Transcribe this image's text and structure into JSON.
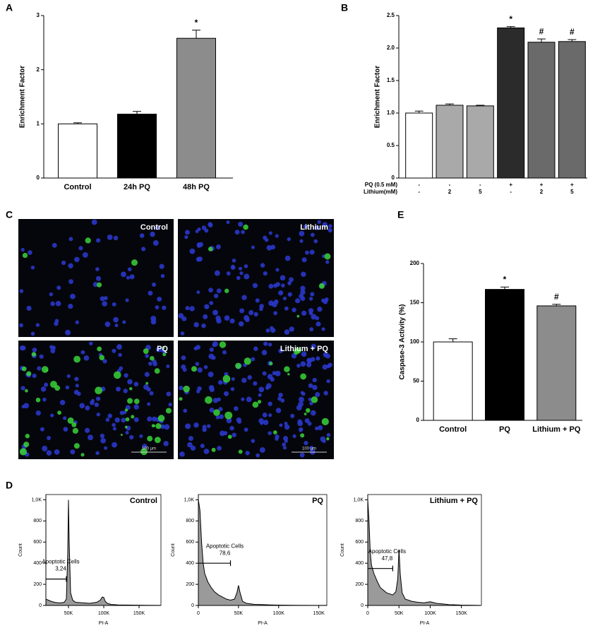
{
  "chart_data": [
    {
      "type": "bar",
      "panel": "A",
      "ylabel": "Enrichment Factor",
      "categories": [
        "Control",
        "24h PQ",
        "48h PQ"
      ],
      "values": [
        1.0,
        1.18,
        2.58
      ],
      "errors": [
        0.02,
        0.05,
        0.15
      ],
      "colors": [
        "#ffffff",
        "#000000",
        "#8c8c8c"
      ],
      "markers": [
        null,
        null,
        "*"
      ],
      "ylim": [
        0,
        3
      ],
      "yticks": [
        0,
        1,
        2,
        3
      ]
    },
    {
      "type": "bar",
      "panel": "B",
      "ylabel": "Enrichment Factor",
      "values": [
        1.0,
        1.12,
        1.11,
        2.31,
        2.09,
        2.1
      ],
      "errors": [
        0.03,
        0.02,
        0.01,
        0.02,
        0.05,
        0.03
      ],
      "colors": [
        "#ffffff",
        "#a9a9a9",
        "#a9a9a9",
        "#2b2b2b",
        "#6a6a6a",
        "#6a6a6a"
      ],
      "markers": [
        null,
        null,
        null,
        "*",
        "#",
        "#"
      ],
      "conditions": [
        {
          "name": "PQ (0.5 mM)",
          "values": [
            "-",
            "-",
            "-",
            "+",
            "+",
            "+"
          ]
        },
        {
          "name": "Lithium(mM)",
          "values": [
            "-",
            "2",
            "5",
            "-",
            "2",
            "5"
          ]
        }
      ],
      "ylim": [
        0,
        2.5
      ],
      "yticks": [
        0,
        0.5,
        {
          "value": 1,
          "label": "1.0"
        },
        1.5,
        {
          "value": 2,
          "label": "2.0"
        },
        2.5
      ]
    },
    {
      "type": "bar",
      "panel": "E",
      "ylabel": "Caspase-3 Activity (%)",
      "categories": [
        "Control",
        "PQ",
        "Lithium + PQ"
      ],
      "values": [
        100,
        167,
        146
      ],
      "errors": [
        4,
        3,
        2
      ],
      "colors": [
        "#ffffff",
        "#000000",
        "#8c8c8c"
      ],
      "markers": [
        null,
        "*",
        "#"
      ],
      "ylim": [
        0,
        200
      ],
      "yticks": [
        0,
        50,
        100,
        150,
        200
      ]
    },
    {
      "type": "area",
      "panel": "D",
      "title": "Control",
      "xlabel": "PI-A",
      "ylabel": "Count",
      "x": [
        18000,
        25000,
        30000,
        35000,
        40000,
        44000,
        47000,
        49000,
        50000,
        51000,
        53000,
        56000,
        60000,
        70000,
        80000,
        90000,
        95000,
        98000,
        100000,
        102000,
        105000,
        110000,
        120000,
        140000,
        160000,
        180000
      ],
      "values": [
        60,
        40,
        30,
        25,
        25,
        30,
        60,
        500,
        1000,
        600,
        120,
        50,
        30,
        25,
        20,
        30,
        50,
        80,
        75,
        40,
        20,
        10,
        5,
        3,
        2,
        1
      ],
      "gate": {
        "label": "Apoptotic Cells",
        "value": 3.24,
        "value_label": "3,24",
        "x": [
          18000,
          47000
        ],
        "y": 250
      },
      "xlim": [
        18000,
        181000
      ],
      "xticks": [
        {
          "value": 50000,
          "label": "50K"
        },
        {
          "value": 100000,
          "label": "100K"
        },
        {
          "value": 150000,
          "label": "150K"
        }
      ],
      "ylim": [
        0,
        1050
      ],
      "yticks": [
        0,
        200,
        400,
        600,
        800,
        {
          "value": 1000,
          "label": "1,0K"
        }
      ]
    },
    {
      "type": "area",
      "title": "PQ",
      "xlabel": "PI-A",
      "ylabel": "Count",
      "x": [
        0,
        2000,
        4000,
        6000,
        8000,
        12000,
        16000,
        20000,
        25000,
        30000,
        35000,
        40000,
        45000,
        48000,
        50000,
        52000,
        55000,
        60000,
        70000,
        80000,
        90000,
        100000,
        120000,
        140000,
        160000
      ],
      "values": [
        1000,
        900,
        600,
        400,
        300,
        220,
        170,
        130,
        100,
        80,
        60,
        50,
        60,
        120,
        190,
        120,
        40,
        20,
        10,
        8,
        5,
        3,
        2,
        1,
        1
      ],
      "gate": {
        "label": "Apoptotic Cells",
        "value": 78.6,
        "value_label": "78,6",
        "x": [
          0,
          40000
        ],
        "y": 400
      },
      "xlim": [
        0,
        160000
      ],
      "xticks": [
        0,
        {
          "value": 50000,
          "label": "50K"
        },
        {
          "value": 100000,
          "label": "100K"
        },
        {
          "value": 150000,
          "label": "150K"
        }
      ],
      "ylim": [
        0,
        1050
      ],
      "yticks": [
        0,
        200,
        400,
        600,
        800,
        {
          "value": 1000,
          "label": "1,0K"
        }
      ]
    },
    {
      "type": "area",
      "title": "Lithium + PQ",
      "xlabel": "PI-A",
      "ylabel": "Count",
      "x": [
        0,
        2000,
        4000,
        6000,
        10000,
        15000,
        20000,
        30000,
        40000,
        45000,
        48000,
        50000,
        52000,
        55000,
        60000,
        70000,
        80000,
        90000,
        100000,
        110000,
        130000,
        150000,
        180000
      ],
      "values": [
        1000,
        800,
        500,
        380,
        300,
        230,
        170,
        120,
        100,
        130,
        250,
        530,
        300,
        120,
        60,
        40,
        30,
        25,
        35,
        20,
        8,
        3,
        1
      ],
      "gate": {
        "label": "Apoptotic Cells",
        "value": 47.8,
        "value_label": "47,8",
        "x": [
          0,
          40000
        ],
        "y": 350
      },
      "xlim": [
        0,
        182000
      ],
      "xticks": [
        0,
        {
          "value": 50000,
          "label": "50K"
        },
        {
          "value": 100000,
          "label": "100K"
        },
        {
          "value": 150000,
          "label": "150K"
        }
      ],
      "ylim": [
        0,
        1050
      ],
      "yticks": [
        0,
        200,
        400,
        600,
        800,
        {
          "value": 1000,
          "label": "1,0K"
        }
      ]
    }
  ],
  "images": {
    "panel": "C",
    "scale_bar": "100 µm",
    "tiles": [
      {
        "label": "Control"
      },
      {
        "label": "Lithium"
      },
      {
        "label": "PQ"
      },
      {
        "label": "Lithium + PQ"
      }
    ]
  }
}
